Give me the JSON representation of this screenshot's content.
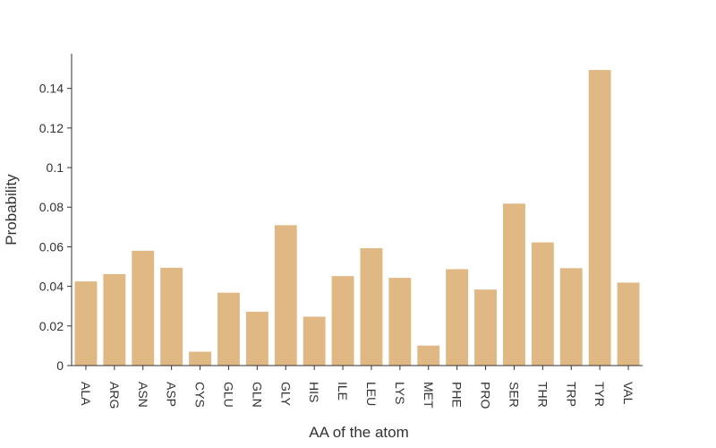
{
  "chart_data": {
    "type": "bar",
    "xlabel": "AA of the atom",
    "ylabel": "Probability",
    "ylim": [
      0,
      0.1575
    ],
    "yticks": [
      0,
      0.02,
      0.04,
      0.06,
      0.08,
      0.1,
      0.12,
      0.14
    ],
    "ytick_labels": [
      "0",
      "0.02",
      "0.04",
      "0.06",
      "0.08",
      "0.1",
      "0.12",
      "0.14"
    ],
    "categories": [
      "ALA",
      "ARG",
      "ASN",
      "ASP",
      "CYS",
      "GLU",
      "GLN",
      "GLY",
      "HIS",
      "ILE",
      "LEU",
      "LYS",
      "MET",
      "PHE",
      "PRO",
      "SER",
      "THR",
      "TRP",
      "TYR",
      "VAL"
    ],
    "values": [
      0.0425,
      0.0462,
      0.058,
      0.0494,
      0.007,
      0.0368,
      0.0272,
      0.0709,
      0.0247,
      0.0452,
      0.0593,
      0.0443,
      0.0101,
      0.0487,
      0.0384,
      0.0818,
      0.0622,
      0.0492,
      0.1493,
      0.0419
    ],
    "bar_color": "#e0b884",
    "grid": false,
    "legend": "none"
  }
}
